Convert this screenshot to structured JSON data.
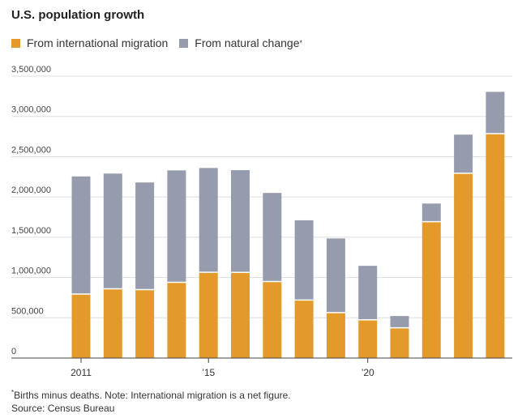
{
  "chart_data": {
    "type": "bar",
    "stacked": true,
    "title": "U.S. population growth",
    "x": [
      2011,
      2012,
      2013,
      2014,
      2015,
      2016,
      2017,
      2018,
      2019,
      2020,
      2021,
      2022,
      2023,
      2024
    ],
    "series": [
      {
        "name": "From international migration",
        "color": "#e39a2a",
        "values": [
          795000,
          860000,
          850000,
          940000,
          1065000,
          1063000,
          950000,
          720000,
          565000,
          475000,
          376000,
          1693000,
          2294000,
          2786000
        ]
      },
      {
        "name": "From natural change",
        "color": "#969cad",
        "values": [
          1460000,
          1430000,
          1330000,
          1390000,
          1295000,
          1270000,
          1100000,
          990000,
          920000,
          670000,
          146000,
          225000,
          480000,
          519000
        ]
      }
    ],
    "legend_superscript": "*",
    "ylim": [
      0,
      3500000
    ],
    "yticks": [
      "0",
      "500,000",
      "1,000,000",
      "1,500,000",
      "2,000,000",
      "2,500,000",
      "3,000,000",
      "3,500,000"
    ],
    "ytick_values": [
      0,
      500000,
      1000000,
      1500000,
      2000000,
      2500000,
      3000000,
      3500000
    ],
    "xtick_labels": [
      {
        "year": 2011,
        "label": "2011"
      },
      {
        "year": 2015,
        "label": "’15"
      },
      {
        "year": 2020,
        "label": "’20"
      }
    ],
    "grid": true,
    "legend_position": "top-left"
  },
  "footnote": {
    "marker": "*",
    "note": "Births minus deaths. Note: International migration is a net figure.",
    "source": "Source: Census Bureau"
  },
  "colors": {
    "axis": "#444444",
    "grid": "#dddddd"
  }
}
